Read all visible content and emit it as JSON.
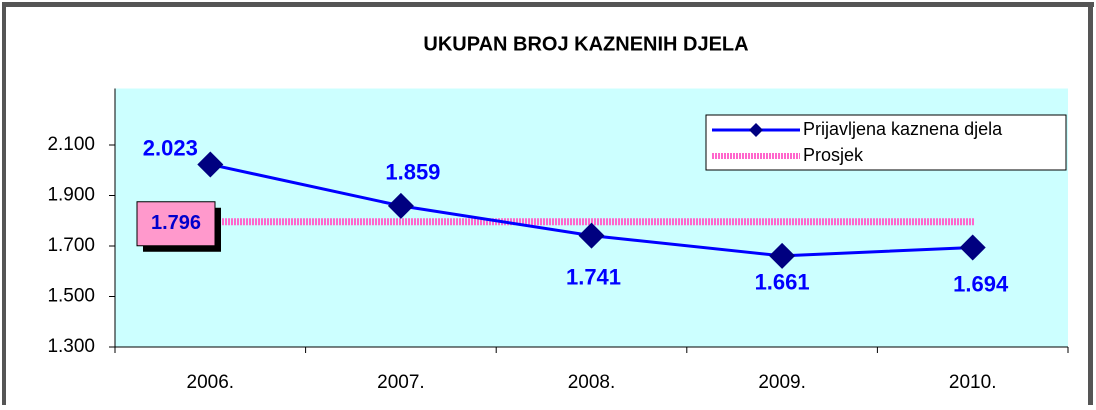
{
  "chart_data": {
    "type": "line",
    "title": "UKUPAN BROJ KAZNENIH DJELA",
    "categories": [
      "2006.",
      "2007.",
      "2008.",
      "2009.",
      "2010."
    ],
    "series": [
      {
        "name": "Prijavljena kaznena djela",
        "color": "#0000ff",
        "marker_color": "#000080",
        "values": [
          2023,
          1859,
          1741,
          1661,
          1694
        ],
        "value_labels": [
          "2.023",
          "1.859",
          "1.741",
          "1.661",
          "1.694"
        ]
      }
    ],
    "average": {
      "name": "Prosjek",
      "color": "#ff66cc",
      "value": 1796,
      "label": "1.796"
    },
    "ylim": [
      1300,
      2300
    ],
    "yticks": [
      {
        "value": 1300,
        "label": "1.300"
      },
      {
        "value": 1500,
        "label": "1.500"
      },
      {
        "value": 1700,
        "label": "1.700"
      },
      {
        "value": 1900,
        "label": "1.900"
      },
      {
        "value": 2100,
        "label": "2.100"
      }
    ],
    "legend": "top-right"
  }
}
